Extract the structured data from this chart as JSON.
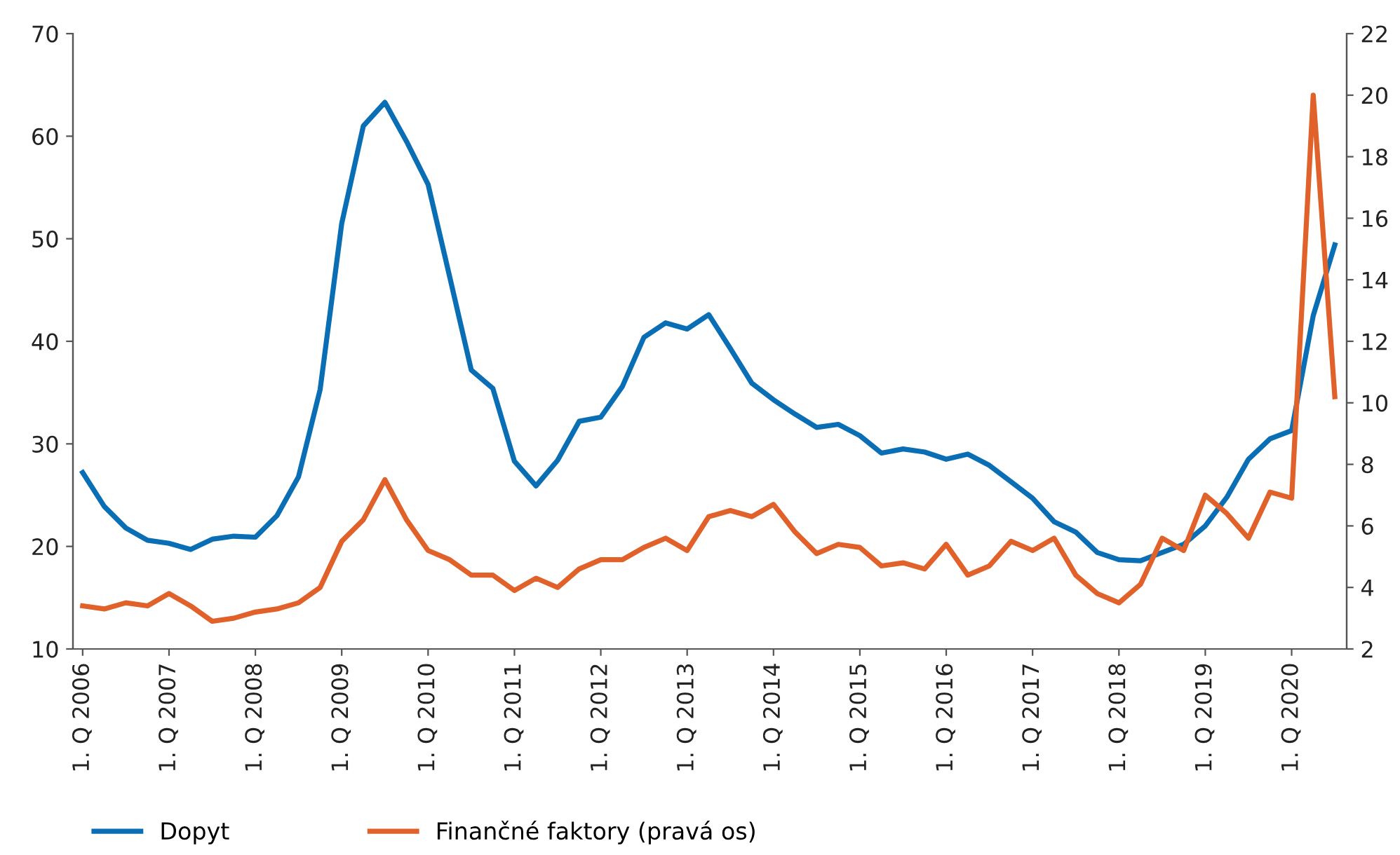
{
  "chart_data": {
    "type": "line",
    "categories": [
      "1. Q 2006",
      null,
      null,
      null,
      "1. Q 2007",
      null,
      null,
      null,
      "1. Q 2008",
      null,
      null,
      null,
      "1. Q 2009",
      null,
      null,
      null,
      "1. Q 2010",
      null,
      null,
      null,
      "1. Q 2011",
      null,
      null,
      null,
      "1. Q 2012",
      null,
      null,
      null,
      "1. Q 2013",
      null,
      null,
      null,
      "1. Q 2014",
      null,
      null,
      null,
      "1. Q 2015",
      null,
      null,
      null,
      "1. Q 2016",
      null,
      null,
      null,
      "1. Q 2017",
      null,
      null,
      null,
      "1. Q 2018",
      null,
      null,
      null,
      "1. Q 2019",
      null,
      null,
      null,
      "1. Q 2020",
      null,
      null
    ],
    "series": [
      {
        "name": "Dopyt",
        "color": "#0a6eb4",
        "values": [
          27.2,
          23.9,
          21.8,
          20.6,
          20.3,
          19.7,
          20.7,
          21.0,
          20.9,
          23.0,
          26.8,
          35.3,
          51.5,
          61.0,
          63.3,
          59.5,
          55.3,
          46.3,
          37.2,
          35.4,
          28.3,
          25.9,
          28.4,
          32.2,
          32.6,
          35.6,
          40.4,
          41.8,
          41.2,
          42.6,
          39.3,
          35.9,
          34.3,
          32.9,
          31.6,
          31.9,
          30.8,
          29.1,
          29.5,
          29.2,
          28.5,
          29.0,
          27.9,
          26.3,
          24.7,
          22.4,
          21.4,
          19.4,
          18.7,
          18.6,
          19.4,
          20.2,
          22.0,
          24.8,
          28.5,
          30.5,
          31.3,
          42.5,
          49.4
        ]
      },
      {
        "name": "Finančné faktory (pravá os)",
        "color": "#e0622a",
        "axis": "y2",
        "values": [
          3.4,
          3.3,
          3.5,
          3.4,
          3.8,
          3.4,
          2.9,
          3.0,
          3.2,
          3.3,
          3.5,
          4.0,
          5.5,
          6.2,
          7.5,
          6.2,
          5.2,
          4.9,
          4.4,
          4.4,
          3.9,
          4.3,
          4.0,
          4.6,
          4.9,
          4.9,
          5.3,
          5.6,
          5.2,
          6.3,
          6.5,
          6.3,
          6.7,
          5.8,
          5.1,
          5.4,
          5.3,
          4.7,
          4.8,
          4.6,
          5.4,
          4.4,
          4.7,
          5.5,
          5.2,
          5.6,
          4.4,
          3.8,
          3.5,
          4.1,
          5.6,
          5.2,
          7.0,
          6.4,
          5.6,
          7.1,
          6.9,
          20.0,
          10.2
        ]
      }
    ],
    "ylim": [
      10,
      70
    ],
    "yticks": [
      10,
      20,
      30,
      40,
      50,
      60,
      70
    ],
    "y2lim": [
      2,
      22
    ],
    "y2ticks": [
      2,
      4,
      6,
      8,
      10,
      12,
      14,
      16,
      18,
      20,
      22
    ],
    "grid": false,
    "legend": "bottom left",
    "marker": "none",
    "line_style": "solid"
  }
}
